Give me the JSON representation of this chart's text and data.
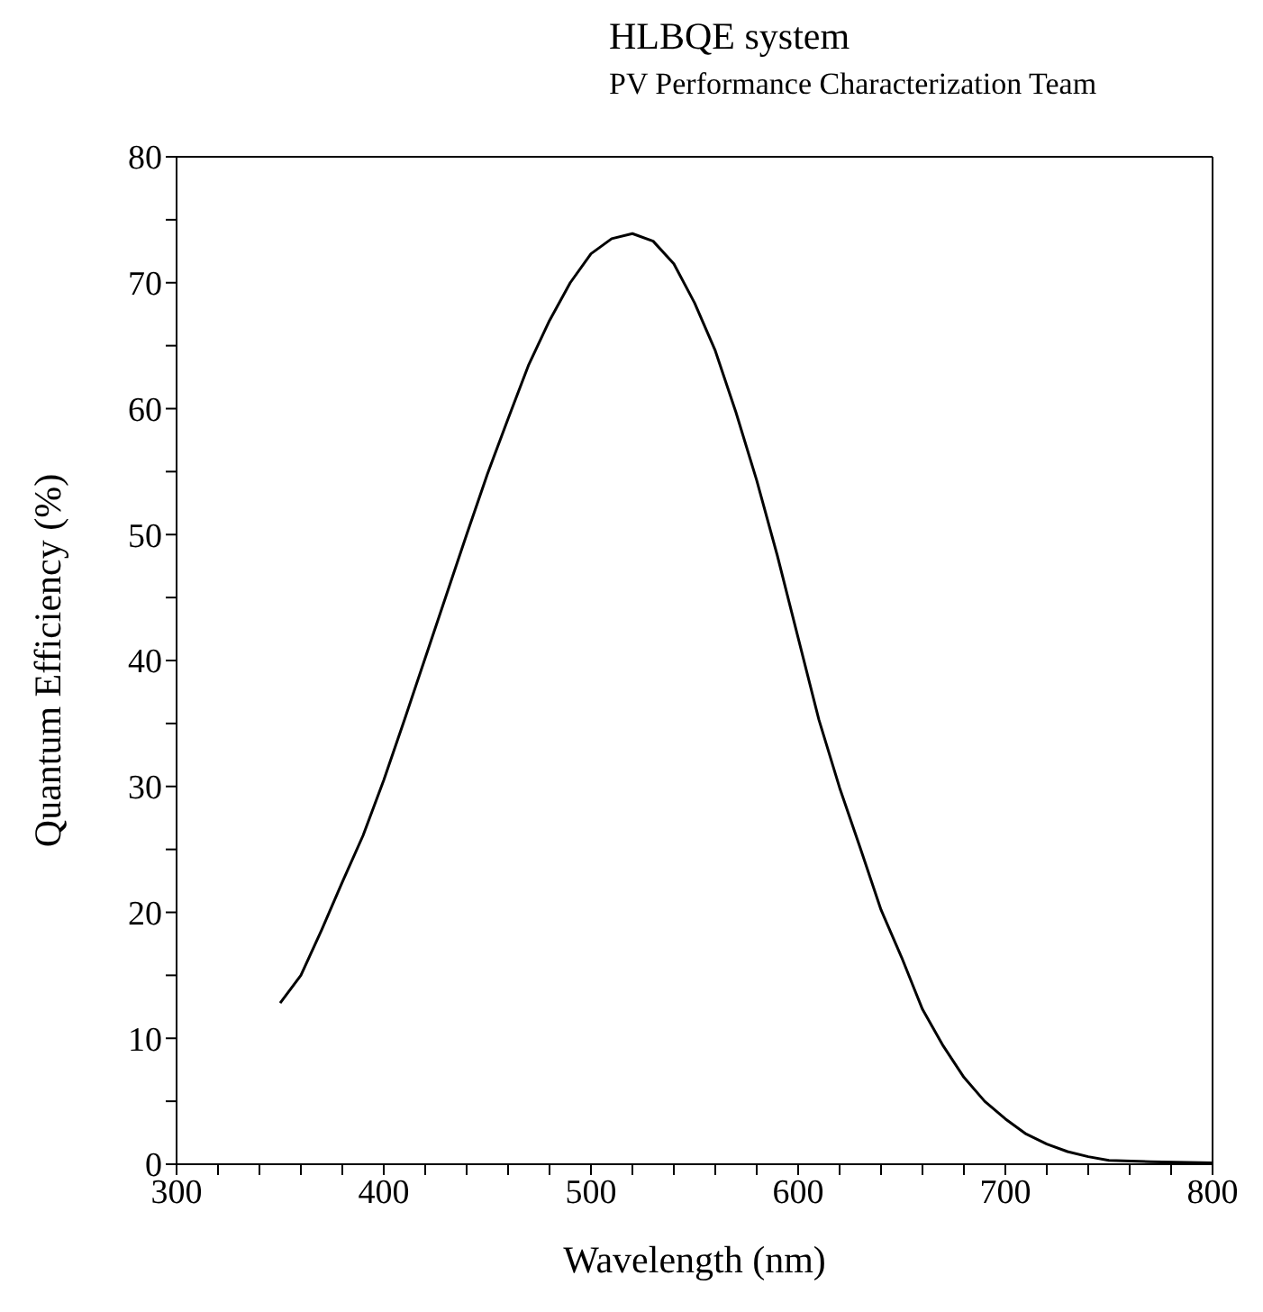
{
  "chart_data": {
    "type": "line",
    "title": "HLBQE system",
    "subtitle": "PV Performance Characterization Team",
    "xlabel": "Wavelength (nm)",
    "ylabel": "Quantum Efficiency (%)",
    "x": [
      350,
      360,
      370,
      380,
      390,
      400,
      410,
      420,
      430,
      440,
      450,
      460,
      470,
      480,
      490,
      500,
      510,
      520,
      530,
      540,
      550,
      560,
      570,
      580,
      590,
      600,
      610,
      620,
      630,
      640,
      650,
      660,
      670,
      680,
      690,
      700,
      710,
      720,
      730,
      740,
      750,
      770,
      800
    ],
    "series": [
      {
        "color": "#000000",
        "values": [
          12.8,
          15.0,
          18.6,
          22.4,
          26.1,
          30.5,
          35.3,
          40.2,
          45.1,
          50.0,
          54.8,
          59.2,
          63.5,
          67.0,
          70.0,
          72.3,
          73.5,
          73.9,
          73.3,
          71.5,
          68.4,
          64.6,
          59.7,
          54.3,
          48.3,
          41.8,
          35.3,
          29.9,
          25.1,
          20.2,
          16.4,
          12.3,
          9.4,
          6.9,
          5.0,
          3.6,
          2.4,
          1.6,
          1.0,
          0.6,
          0.3,
          0.2,
          0.1
        ]
      }
    ],
    "xlim": [
      300,
      800
    ],
    "xticks": [
      300,
      {
        "value": 320,
        "label": null
      },
      {
        "value": 340,
        "label": null
      },
      {
        "value": 360,
        "label": null
      },
      {
        "value": 380,
        "label": null
      },
      400,
      {
        "value": 420,
        "label": null
      },
      {
        "value": 440,
        "label": null
      },
      {
        "value": 460,
        "label": null
      },
      {
        "value": 480,
        "label": null
      },
      500,
      {
        "value": 520,
        "label": null
      },
      {
        "value": 540,
        "label": null
      },
      {
        "value": 560,
        "label": null
      },
      {
        "value": 580,
        "label": null
      },
      600,
      {
        "value": 620,
        "label": null
      },
      {
        "value": 640,
        "label": null
      },
      {
        "value": 660,
        "label": null
      },
      {
        "value": 680,
        "label": null
      },
      700,
      {
        "value": 720,
        "label": null
      },
      {
        "value": 740,
        "label": null
      },
      {
        "value": 760,
        "label": null
      },
      {
        "value": 780,
        "label": null
      },
      800
    ],
    "ylim": [
      0,
      80
    ],
    "yticks": [
      0,
      {
        "value": 5,
        "label": null
      },
      10,
      {
        "value": 15,
        "label": null
      },
      20,
      {
        "value": 25,
        "label": null
      },
      30,
      {
        "value": 35,
        "label": null
      },
      40,
      {
        "value": 45,
        "label": null
      },
      50,
      {
        "value": 55,
        "label": null
      },
      60,
      {
        "value": 65,
        "label": null
      },
      70,
      {
        "value": 75,
        "label": null
      },
      80
    ],
    "grid": false,
    "legend": false,
    "marker": "none",
    "line_style": "solid"
  }
}
